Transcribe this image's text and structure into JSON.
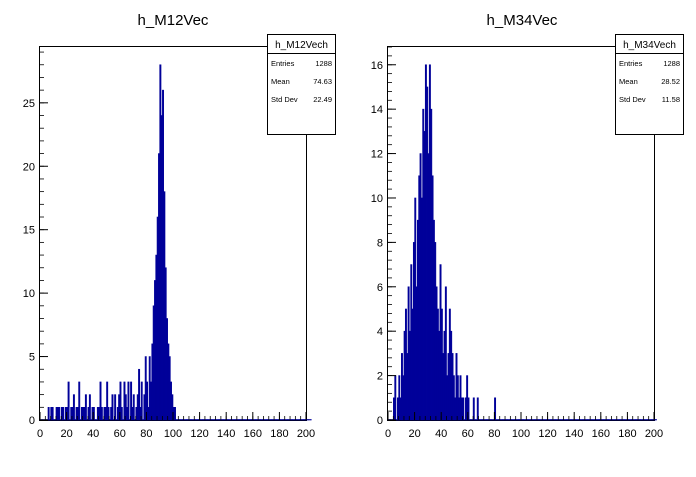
{
  "chart_data": [
    {
      "type": "bar",
      "style": "histogram-step",
      "title": "h_M12Vec",
      "xlabel": "",
      "ylabel": "",
      "xlim": [
        0,
        200
      ],
      "ylim": [
        0,
        29.4
      ],
      "bins": 200,
      "bin_width": 1,
      "x_ticks": [
        "0",
        "20",
        "40",
        "60",
        "80",
        "100",
        "120",
        "140",
        "160",
        "180",
        "200"
      ],
      "y_ticks": [
        "0",
        "5",
        "10",
        "15",
        "20",
        "25"
      ],
      "color": "#000099",
      "stats": {
        "name": "h_M12Vech",
        "rows": [
          {
            "label": "Entries",
            "value": "1288"
          },
          {
            "label": "Mean",
            "value": "74.63"
          },
          {
            "label": "Std Dev",
            "value": "22.49"
          }
        ]
      },
      "counts": [
        0,
        0,
        0,
        0,
        0,
        0,
        1,
        0,
        1,
        1,
        0,
        0,
        1,
        1,
        1,
        0,
        1,
        1,
        0,
        1,
        1,
        3,
        0,
        1,
        1,
        2,
        0,
        1,
        1,
        3,
        0,
        1,
        1,
        1,
        2,
        0,
        1,
        2,
        0,
        1,
        1,
        0,
        0,
        1,
        1,
        3,
        1,
        0,
        1,
        1,
        3,
        1,
        0,
        1,
        2,
        0,
        2,
        0,
        1,
        2,
        3,
        1,
        0,
        3,
        2,
        1,
        3,
        0,
        3,
        1,
        2,
        0,
        1,
        2,
        4,
        1,
        3,
        0,
        2,
        5,
        3,
        1,
        5,
        3,
        6,
        9,
        11,
        13,
        16,
        21,
        28,
        24,
        26,
        18,
        12,
        8,
        6,
        5,
        3,
        2,
        1,
        1,
        0,
        0,
        0,
        0,
        0,
        0,
        0,
        0,
        0,
        0,
        0,
        0,
        0,
        0,
        0,
        0,
        0,
        0,
        0,
        0,
        0,
        0,
        0,
        0,
        0,
        0,
        0,
        0,
        0,
        0,
        0,
        0,
        0,
        0,
        0,
        0,
        0,
        0,
        0,
        0,
        0,
        0,
        0,
        0,
        0,
        0,
        0,
        0,
        0,
        0,
        0,
        0,
        0,
        0,
        0,
        0,
        0,
        0,
        0,
        0,
        0,
        0,
        0,
        0,
        0,
        0,
        0,
        0,
        0,
        0,
        0,
        0,
        0,
        0,
        0,
        0,
        0,
        0,
        0,
        0,
        0,
        0,
        0,
        0,
        0,
        0,
        0,
        0,
        0,
        0,
        0,
        0,
        0,
        0,
        0,
        0,
        0,
        0,
        0,
        0,
        0,
        0
      ]
    },
    {
      "type": "bar",
      "style": "histogram-step",
      "title": "h_M34Vec",
      "xlabel": "",
      "ylabel": "",
      "xlim": [
        0,
        200
      ],
      "ylim": [
        0,
        16.8
      ],
      "bins": 200,
      "bin_width": 1,
      "x_ticks": [
        "0",
        "20",
        "40",
        "60",
        "80",
        "100",
        "120",
        "140",
        "160",
        "180",
        "200"
      ],
      "y_ticks": [
        "0",
        "2",
        "4",
        "6",
        "8",
        "10",
        "12",
        "14",
        "16"
      ],
      "color": "#000099",
      "stats": {
        "name": "h_M34Vech",
        "rows": [
          {
            "label": "Entries",
            "value": "1288"
          },
          {
            "label": "Mean",
            "value": "28.52"
          },
          {
            "label": "Std Dev",
            "value": "11.58"
          }
        ]
      },
      "counts": [
        0,
        0,
        0,
        0,
        1,
        2,
        0,
        1,
        2,
        1,
        3,
        2,
        4,
        5,
        3,
        6,
        4,
        7,
        5,
        8,
        10,
        6,
        9,
        11,
        12,
        10,
        14,
        13,
        16,
        15,
        12,
        16,
        14,
        11,
        9,
        8,
        6,
        5,
        4,
        7,
        5,
        3,
        4,
        6,
        2,
        3,
        5,
        4,
        3,
        2,
        1,
        3,
        2,
        1,
        2,
        1,
        1,
        0,
        1,
        2,
        1,
        0,
        0,
        0,
        1,
        0,
        0,
        1,
        0,
        0,
        0,
        0,
        0,
        0,
        0,
        0,
        0,
        0,
        0,
        0,
        1,
        0,
        0,
        0,
        0,
        0,
        0,
        0,
        0,
        0,
        0,
        0,
        0,
        0,
        0,
        0,
        0,
        0,
        0,
        0,
        0,
        0,
        0,
        0,
        0,
        0,
        0,
        0,
        0,
        0,
        0,
        0,
        0,
        0,
        0,
        0,
        0,
        0,
        0,
        0,
        0,
        0,
        0,
        0,
        0,
        0,
        0,
        0,
        0,
        0,
        0,
        0,
        0,
        0,
        0,
        0,
        0,
        0,
        0,
        0,
        0,
        0,
        0,
        0,
        0,
        0,
        0,
        0,
        0,
        0,
        0,
        0,
        0,
        0,
        0,
        0,
        0,
        0,
        0,
        0,
        0,
        0,
        0,
        0,
        0,
        0,
        0,
        0,
        0,
        0,
        0,
        0,
        0,
        0,
        0,
        0,
        0,
        0,
        0,
        0,
        0,
        0,
        0,
        0,
        0,
        0,
        0,
        0,
        0,
        0,
        0,
        0,
        0,
        0,
        0,
        0,
        0,
        0,
        0,
        0,
        0,
        0
      ]
    }
  ]
}
